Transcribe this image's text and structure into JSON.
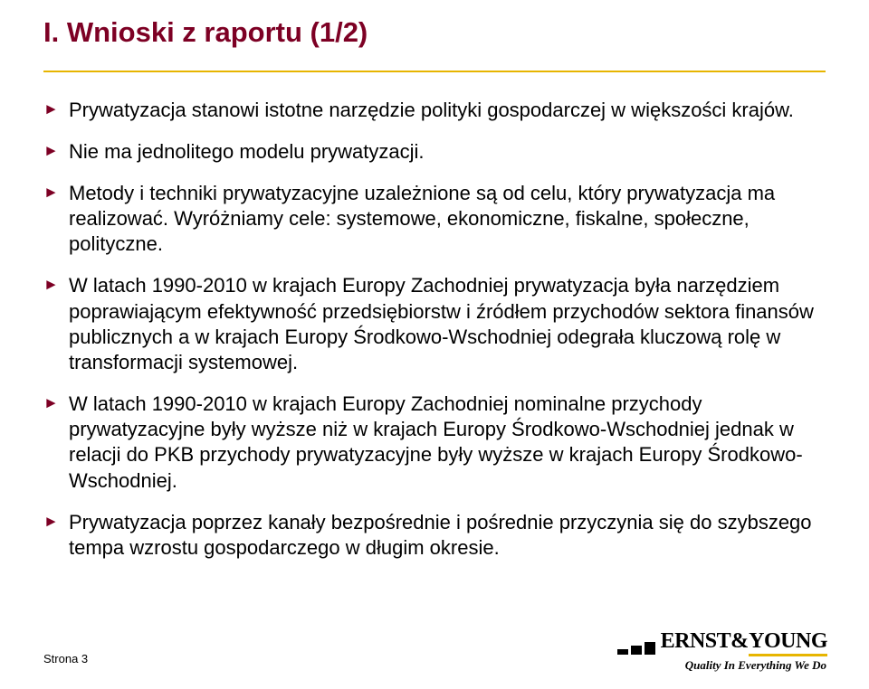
{
  "colors": {
    "title_color": "#7d0024",
    "rule_color": "#e7b500",
    "bullet_color": "#7d0024",
    "text_color": "#000000",
    "tag_underline": "#e7b500"
  },
  "title": "I. Wnioski z raportu (1/2)",
  "bullets": [
    "Prywatyzacja stanowi istotne narzędzie polityki gospodarczej w większości krajów.",
    "Nie ma jednolitego modelu prywatyzacji.",
    "Metody i techniki prywatyzacyjne uzależnione są od celu, który prywatyzacja ma realizować. Wyróżniamy cele: systemowe, ekonomiczne, fiskalne, społeczne, polityczne.",
    "W latach 1990-2010 w krajach Europy Zachodniej prywatyzacja była narzędziem poprawiającym efektywność przedsiębiorstw i źródłem przychodów sektora finansów publicznych a w krajach Europy Środkowo-Wschodniej odegrała kluczową rolę w transformacji systemowej.",
    "W latach 1990-2010 w krajach Europy Zachodniej nominalne przychody prywatyzacyjne były wyższe niż w krajach Europy Środkowo-Wschodniej jednak w relacji do PKB przychody prywatyzacyjne były wyższe w krajach Europy Środkowo-Wschodniej.",
    "Prywatyzacja poprzez kanały bezpośrednie i pośrednie przyczynia się do szybszego tempa wzrostu gospodarczego w długim okresie."
  ],
  "footer": "Strona 3",
  "logo": {
    "ernst": "ERNST",
    "amp": "&",
    "young": "YOUNG",
    "tagline": "Quality In Everything We Do"
  }
}
